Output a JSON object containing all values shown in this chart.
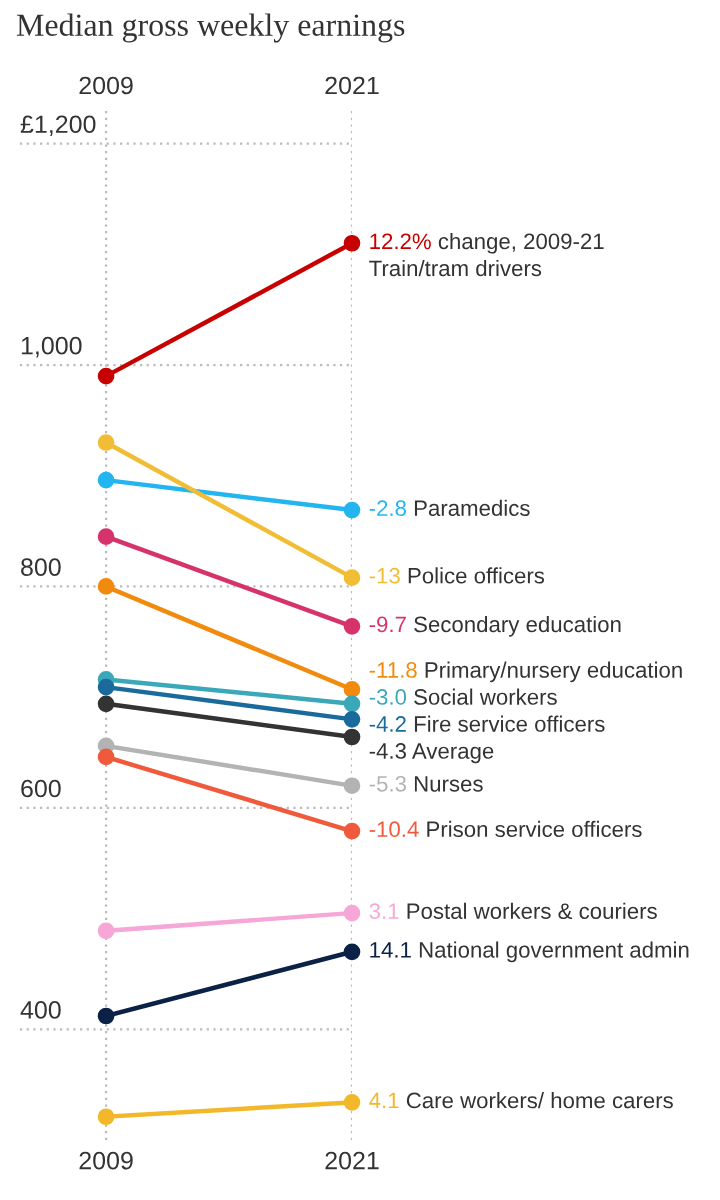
{
  "chart_data": {
    "type": "line",
    "title": "Median gross weekly earnings",
    "categories": [
      "2009",
      "2021"
    ],
    "series": [
      {
        "name": "Train/tram drivers",
        "color": "#c70000",
        "values": [
          990,
          1110
        ]
      },
      {
        "name": "Paramedics",
        "color": "#22b5ef",
        "values": [
          896,
          869
        ]
      },
      {
        "name": "Police officers",
        "color": "#f0bd35",
        "values": [
          930,
          808
        ]
      },
      {
        "name": "Secondary education",
        "color": "#d6336c",
        "values": [
          845,
          764
        ]
      },
      {
        "name": "Primary/nursery education",
        "color": "#f28a0e",
        "values": [
          800,
          707
        ]
      },
      {
        "name": "Social workers",
        "color": "#3aa8b8",
        "values": [
          716,
          694
        ]
      },
      {
        "name": "Fire service officers",
        "color": "#1b6a9c",
        "values": [
          709,
          680
        ]
      },
      {
        "name": "Average",
        "color": "#333333",
        "values": [
          694,
          664
        ]
      },
      {
        "name": "Nurses",
        "color": "#b3b3b3",
        "values": [
          656,
          620
        ]
      },
      {
        "name": "Prison service officers",
        "color": "#f05a3c",
        "values": [
          646,
          579
        ]
      },
      {
        "name": "Postal workers & couriers",
        "color": "#f7a6d8",
        "values": [
          489,
          505
        ]
      },
      {
        "name": "National government admin",
        "color": "#0b2145",
        "values": [
          412,
          470
        ]
      },
      {
        "name": "Care workers/ home carers",
        "color": "#f3b82a",
        "values": [
          321,
          334
        ]
      }
    ],
    "annotations": [
      {
        "text": "12.2% change, 2009-21",
        "x": "2021",
        "y": 1110
      },
      {
        "text": "-2.8",
        "x": "2021",
        "y": 869
      },
      {
        "text": "-13",
        "x": "2021",
        "y": 808
      },
      {
        "text": "-9.7",
        "x": "2021",
        "y": 764
      },
      {
        "text": "-11.8",
        "x": "2021",
        "y": 707
      },
      {
        "text": "-3.0",
        "x": "2021",
        "y": 694
      },
      {
        "text": "-4.2",
        "x": "2021",
        "y": 680
      },
      {
        "text": "-4.3",
        "x": "2021",
        "y": 664
      },
      {
        "text": "-5.3",
        "x": "2021",
        "y": 620
      },
      {
        "text": "-10.4",
        "x": "2021",
        "y": 579
      },
      {
        "text": "3.1",
        "x": "2021",
        "y": 505
      },
      {
        "text": "14.1",
        "x": "2021",
        "y": 470
      },
      {
        "text": "4.1",
        "x": "2021",
        "y": 334
      }
    ],
    "ylim": [
      300,
      1230
    ],
    "yticks": [
      {
        "value": 400,
        "label": "400"
      },
      {
        "value": 600,
        "label": "600"
      },
      {
        "value": 800,
        "label": "800"
      },
      {
        "value": 1000,
        "label": "1,000"
      },
      {
        "value": 1200,
        "label": "£1,200"
      }
    ],
    "grid": true,
    "marker": "circle",
    "line_style": "solid"
  }
}
